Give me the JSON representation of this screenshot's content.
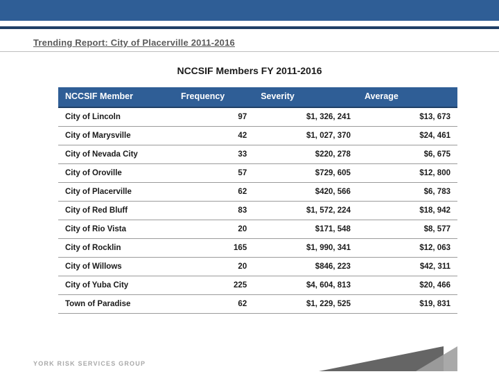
{
  "header": {
    "report_title": "Trending Report: City of Placerville 2011-2016",
    "chart_title": "NCCSIF Members FY 2011-2016"
  },
  "table": {
    "columns": [
      "NCCSIF Member",
      "Frequency",
      "Severity",
      "Average"
    ],
    "column_align": [
      "left",
      "right",
      "right",
      "right"
    ],
    "column_widths_pct": [
      29,
      20,
      26,
      25
    ],
    "header_bg": "#2f5e96",
    "header_fg": "#ffffff",
    "header_fontsize_pt": 12.5,
    "cell_fontsize_pt": 11.5,
    "row_border_color": "#9a9a9a",
    "rows": [
      [
        "City of Lincoln",
        "97",
        "$1, 326, 241",
        "$13, 673"
      ],
      [
        "City of Marysville",
        "42",
        "$1, 027, 370",
        "$24, 461"
      ],
      [
        "City of Nevada City",
        "33",
        "$220, 278",
        "$6, 675"
      ],
      [
        "City of Oroville",
        "57",
        "$729, 605",
        "$12, 800"
      ],
      [
        "City of Placerville",
        "62",
        "$420, 566",
        "$6, 783"
      ],
      [
        "City of Red Bluff",
        "83",
        "$1, 572, 224",
        "$18, 942"
      ],
      [
        "City of Rio Vista",
        "20",
        "$171, 548",
        "$8, 577"
      ],
      [
        "City of Rocklin",
        "165",
        "$1, 990, 341",
        "$12, 063"
      ],
      [
        "City of Willows",
        "20",
        "$846, 223",
        "$42, 311"
      ],
      [
        "City of Yuba City",
        "225",
        "$4, 604, 813",
        "$20, 466"
      ],
      [
        "Town of Paradise",
        "62",
        "$1, 229, 525",
        "$19, 831"
      ]
    ]
  },
  "footer": {
    "logo_text": "YORK RISK SERVICES GROUP"
  },
  "palette": {
    "brand_blue": "#2f5e96",
    "brand_blue_dark": "#1f3f66",
    "text": "#1a1a1a",
    "muted": "#a8a8a8",
    "wedge_dark": "#4a4a4a",
    "wedge_light": "#a0a0a0",
    "background": "#ffffff"
  }
}
